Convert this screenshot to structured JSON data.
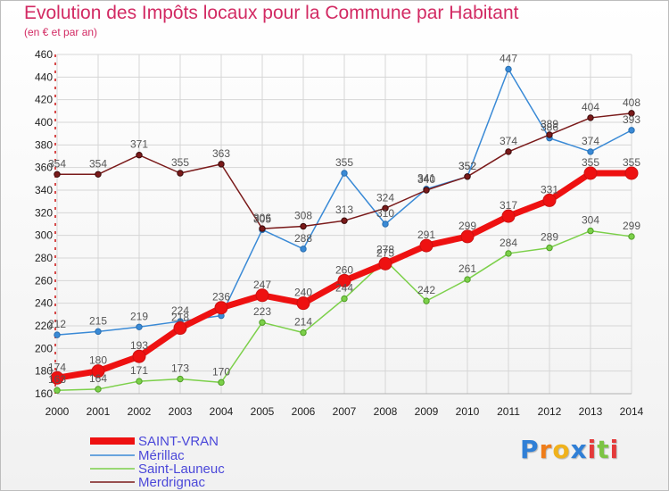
{
  "chart_data": {
    "type": "line",
    "title": "Evolution des Impôts locaux pour la Commune par Habitant",
    "subtitle": "(en € et par an)",
    "x": [
      "2000",
      "2001",
      "2002",
      "2003",
      "2004",
      "2005",
      "2006",
      "2007",
      "2008",
      "2009",
      "2010",
      "2011",
      "2012",
      "2013",
      "2014"
    ],
    "ylim": [
      160,
      460
    ],
    "yticks": [
      160,
      180,
      200,
      220,
      240,
      260,
      280,
      300,
      320,
      340,
      360,
      380,
      400,
      420,
      440,
      460
    ],
    "grid": true,
    "legend_position": "bottom-left",
    "series": [
      {
        "name": "SAINT-VRAN",
        "color": "#ee1111",
        "values": [
          174,
          180,
          193,
          218,
          236,
          247,
          240,
          260,
          275,
          291,
          299,
          317,
          331,
          355,
          355
        ]
      },
      {
        "name": "Mérillac",
        "color": "#3a8ad6",
        "values": [
          212,
          215,
          219,
          224,
          229,
          305,
          288,
          355,
          310,
          341,
          352,
          447,
          386,
          374,
          393
        ]
      },
      {
        "name": "Saint-Launeuc",
        "color": "#7cd04a",
        "values": [
          163,
          164,
          171,
          173,
          170,
          223,
          214,
          244,
          278,
          242,
          261,
          284,
          289,
          304,
          299
        ]
      },
      {
        "name": "Merdrignac",
        "color": "#7a1a1a",
        "values": [
          354,
          354,
          371,
          355,
          363,
          306,
          308,
          313,
          324,
          340,
          352,
          374,
          389,
          404,
          408
        ]
      }
    ]
  },
  "data_labels": [
    {
      "name": "SAINT-VRAN",
      "values": [
        "174",
        "180",
        "193",
        "218",
        "236",
        "247",
        "240",
        "260",
        "275",
        "291",
        "299",
        "317",
        "331",
        "355",
        "355"
      ]
    },
    {
      "name": "Mérillac",
      "values": [
        "212",
        "215",
        "219",
        "224",
        "",
        "305",
        "288",
        "355",
        "310",
        "341",
        "352",
        "447",
        "386",
        "374",
        "393"
      ]
    },
    {
      "name": "Saint-Launeuc",
      "values": [
        "163",
        "164",
        "171",
        "173",
        "170",
        "223",
        "214",
        "244",
        "278",
        "242",
        "261",
        "284",
        "289",
        "304",
        "299"
      ]
    },
    {
      "name": "Merdrignac",
      "values": [
        "354",
        "354",
        "371",
        "355",
        "363",
        "306",
        "308",
        "313",
        "324",
        "340",
        "352",
        "374",
        "389",
        "404",
        "408"
      ]
    }
  ],
  "logo": {
    "letters": [
      "P",
      "r",
      "o",
      "x",
      "i",
      "t",
      "i"
    ],
    "colors": [
      "#2f7fd6",
      "#ef7d1a",
      "#f0b21c",
      "#2f7fd6",
      "#e43a3a",
      "#7cc444",
      "#e43a3a"
    ]
  }
}
